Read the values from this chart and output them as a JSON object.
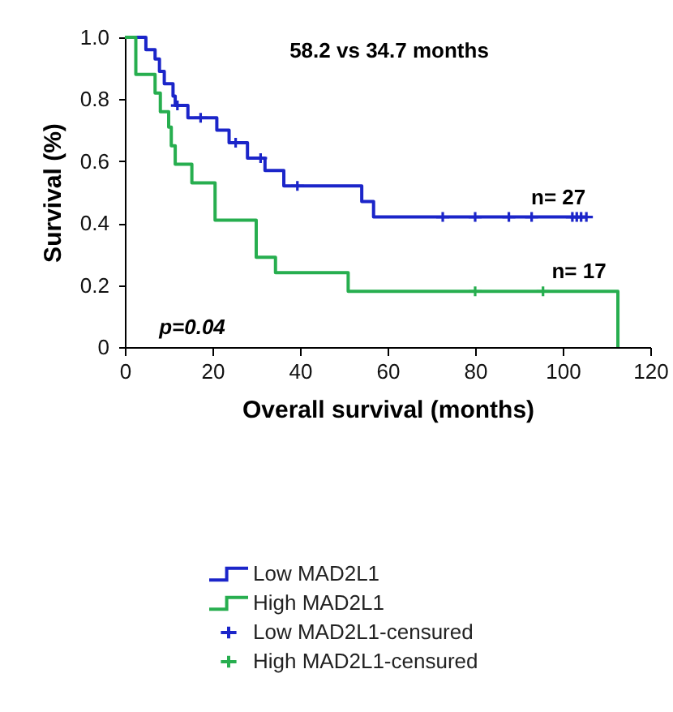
{
  "chart_data": {
    "type": "step",
    "xlabel": "Overall survival (months)",
    "ylabel": "Survival (%)",
    "xlim": [
      0,
      120
    ],
    "xticks": [
      0,
      20,
      40,
      60,
      80,
      100,
      120
    ],
    "ylim": [
      0,
      1
    ],
    "yticks": [
      0,
      0.2,
      0.4,
      0.6,
      0.8,
      {
        "value": 1,
        "label": "1.0"
      }
    ],
    "grid": false,
    "legend": "bottom",
    "line_style": "solid",
    "annotations": [
      "58.2 vs 34.7 months",
      "p=0.04",
      {
        "text": "n= 27",
        "x": 99,
        "y": 0.42
      },
      {
        "text": "n= 17",
        "x": 103.7,
        "y": 0.18
      }
    ],
    "series": [
      {
        "name": "Low MAD2L1",
        "color": "#1b25c9",
        "x": [
          0,
          4.8,
          6.9,
          7.9,
          9.0,
          11.0,
          11.5,
          14.4,
          21.0,
          23.8,
          28.0,
          32.0,
          36.3,
          54.1,
          56.8,
          105.4
        ],
        "values": [
          1,
          0.96,
          0.93,
          0.89,
          0.85,
          0.81,
          0.78,
          0.74,
          0.7,
          0.66,
          0.61,
          0.57,
          0.52,
          0.47,
          0.42,
          0.42
        ]
      },
      {
        "name": "High MAD2L1",
        "color": "#27ae4f",
        "x": [
          0,
          2.5,
          6.9,
          8.1,
          10.0,
          10.6,
          11.5,
          15.3,
          20.6,
          30.0,
          34.4,
          51.0,
          112.6
        ],
        "values": [
          1,
          0.88,
          0.82,
          0.76,
          0.71,
          0.65,
          0.59,
          0.53,
          0.41,
          0.29,
          0.24,
          0.18,
          0
        ]
      },
      {
        "name": "Low MAD2L1-censured",
        "type": "scatter",
        "marker": "cross",
        "color": "#1b25c9",
        "x": [
          12.0,
          17.3,
          25.3,
          31.0,
          39.4,
          72.6,
          80.0,
          87.7,
          92.9,
          102.2,
          103.2,
          104.2,
          105.4
        ],
        "values": [
          0.78,
          0.74,
          0.66,
          0.61,
          0.52,
          0.42,
          0.42,
          0.42,
          0.42,
          0.42,
          0.42,
          0.42,
          0.42
        ]
      },
      {
        "name": "High MAD2L1-censured",
        "type": "scatter",
        "marker": "cross",
        "color": "#27ae4f",
        "x": [
          80.0,
          95.5
        ],
        "values": [
          0.18,
          0.18
        ]
      }
    ]
  }
}
